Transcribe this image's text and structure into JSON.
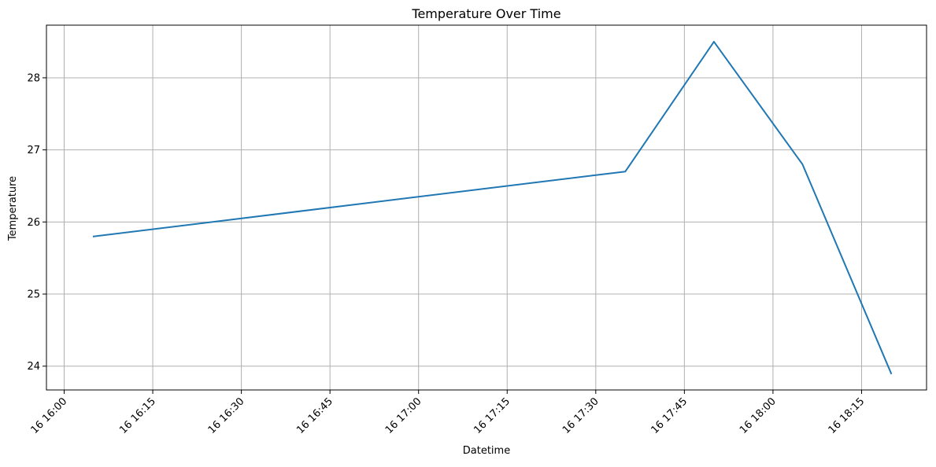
{
  "chart_data": {
    "type": "line",
    "title": "Temperature Over Time",
    "xlabel": "Datetime",
    "ylabel": "Temperature",
    "x_tick_labels": [
      "16 16:00",
      "16 16:15",
      "16 16:30",
      "16 16:45",
      "16 17:00",
      "16 17:15",
      "16 17:30",
      "16 17:45",
      "16 18:00",
      "16 18:15"
    ],
    "y_tick_labels": [
      "24",
      "25",
      "26",
      "27",
      "28"
    ],
    "y_ticks": [
      24,
      25,
      26,
      27,
      28
    ],
    "xlim": [
      "16 15:57",
      "16 18:26"
    ],
    "ylim": [
      23.67,
      28.73
    ],
    "grid": true,
    "series": [
      {
        "color": "#1f77b4",
        "points": [
          {
            "x": "16 16:05",
            "y": 25.8
          },
          {
            "x": "16 17:35",
            "y": 26.7
          },
          {
            "x": "16 17:50",
            "y": 28.5
          },
          {
            "x": "16 18:05",
            "y": 26.8
          },
          {
            "x": "16 18:20",
            "y": 23.9
          }
        ]
      }
    ]
  }
}
